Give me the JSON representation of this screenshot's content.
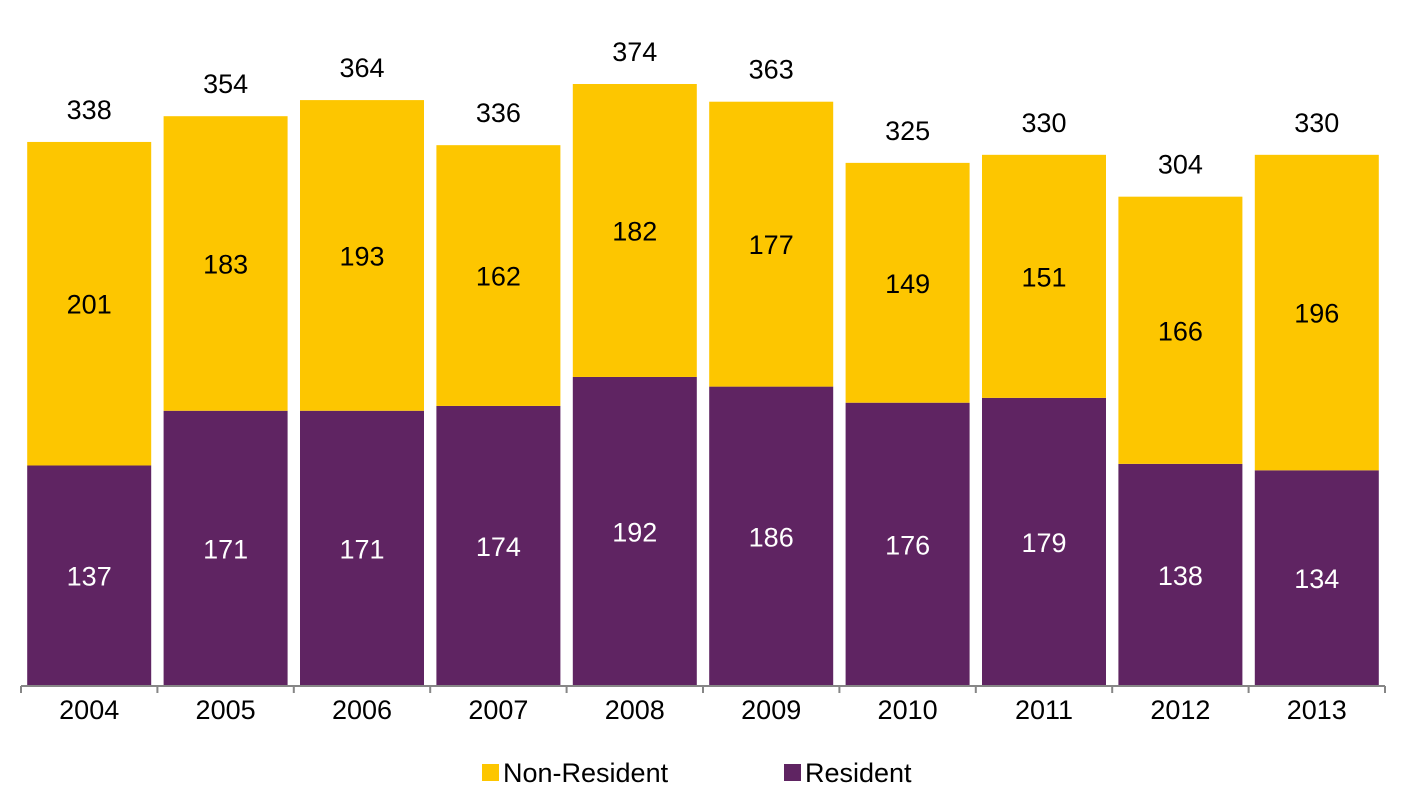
{
  "chart_data": {
    "type": "bar",
    "stacked": true,
    "categories": [
      "2004",
      "2005",
      "2006",
      "2007",
      "2008",
      "2009",
      "2010",
      "2011",
      "2012",
      "2013"
    ],
    "series": [
      {
        "name": "Resident",
        "values": [
          137,
          171,
          171,
          174,
          192,
          186,
          176,
          179,
          138,
          134
        ],
        "color": "#5f2462"
      },
      {
        "name": "Non-Resident",
        "values": [
          201,
          183,
          193,
          162,
          182,
          177,
          149,
          151,
          166,
          196
        ],
        "color": "#fdc600"
      }
    ],
    "totals": [
      338,
      354,
      364,
      336,
      374,
      363,
      325,
      330,
      304,
      330
    ],
    "title": "",
    "xlabel": "",
    "ylabel": "",
    "ylim": [
      0,
      374
    ],
    "grid": false,
    "legend": {
      "position": "bottom-center",
      "entries": [
        "Non-Resident",
        "Resident"
      ]
    }
  }
}
